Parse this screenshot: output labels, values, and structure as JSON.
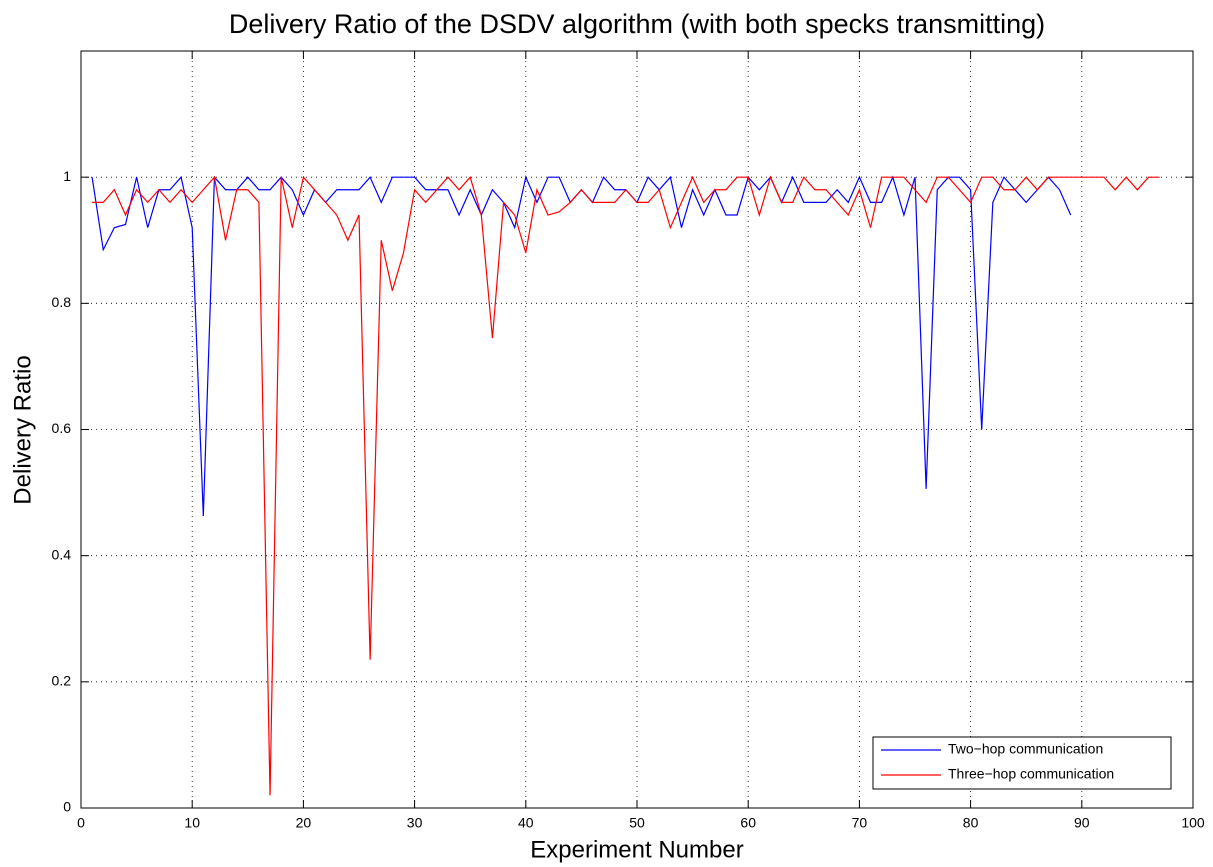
{
  "chart_data": {
    "type": "line",
    "title": "Delivery Ratio of the DSDV algorithm (with both specks transmitting)",
    "xlabel": "Experiment Number",
    "ylabel": "Delivery Ratio",
    "x": [
      1,
      2,
      3,
      4,
      5,
      6,
      7,
      8,
      9,
      10,
      11,
      12,
      13,
      14,
      15,
      16,
      17,
      18,
      19,
      20,
      21,
      22,
      23,
      24,
      25,
      26,
      27,
      28,
      29,
      30,
      31,
      32,
      33,
      34,
      35,
      36,
      37,
      38,
      39,
      40,
      41,
      42,
      43,
      44,
      45,
      46,
      47,
      48,
      49,
      50,
      51,
      52,
      53,
      54,
      55,
      56,
      57,
      58,
      59,
      60,
      61,
      62,
      63,
      64,
      65,
      66,
      67,
      68,
      69,
      70,
      71,
      72,
      73,
      74,
      75,
      76,
      77,
      78,
      79,
      80,
      81,
      82,
      83,
      84,
      85,
      86,
      87,
      88,
      89,
      90,
      91,
      92,
      93,
      94,
      95,
      96,
      97
    ],
    "series": [
      {
        "name": "Two−hop communication",
        "color": "#0000ff",
        "values": [
          1.0,
          0.885,
          0.92,
          0.925,
          1.0,
          0.92,
          0.98,
          0.98,
          1.0,
          0.92,
          0.463,
          1.0,
          0.98,
          0.98,
          1.0,
          0.98,
          0.98,
          1.0,
          0.98,
          0.94,
          0.98,
          0.96,
          0.98,
          0.98,
          0.98,
          1.0,
          0.96,
          1.0,
          1.0,
          1.0,
          0.98,
          0.98,
          0.98,
          0.94,
          0.98,
          0.94,
          0.98,
          0.96,
          0.92,
          1.0,
          0.96,
          1.0,
          1.0,
          0.96,
          0.98,
          0.96,
          1.0,
          0.98,
          0.98,
          0.96,
          1.0,
          0.98,
          1.0,
          0.92,
          0.98,
          0.94,
          0.98,
          0.94,
          0.94,
          1.0,
          0.98,
          1.0,
          0.96,
          1.0,
          0.96,
          0.96,
          0.96,
          0.98,
          0.96,
          1.0,
          0.96,
          0.96,
          1.0,
          0.94,
          1.0,
          0.506,
          0.98,
          1.0,
          1.0,
          0.98,
          0.6,
          0.96,
          1.0,
          0.98,
          0.96,
          0.98,
          1.0,
          0.98,
          0.94,
          null,
          null,
          null,
          null,
          null,
          null,
          null,
          null
        ]
      },
      {
        "name": "Three−hop communication",
        "color": "#ff0000",
        "values": [
          0.96,
          0.96,
          0.98,
          0.94,
          0.98,
          0.96,
          0.98,
          0.96,
          0.98,
          0.96,
          0.98,
          1.0,
          0.9,
          0.98,
          0.98,
          0.96,
          0.02,
          1.0,
          0.92,
          1.0,
          0.98,
          0.96,
          0.94,
          0.9,
          0.94,
          0.235,
          0.9,
          0.82,
          0.88,
          0.98,
          0.96,
          0.98,
          1.0,
          0.98,
          1.0,
          0.94,
          0.745,
          0.96,
          0.94,
          0.88,
          0.98,
          0.94,
          0.945,
          0.96,
          0.98,
          0.96,
          0.96,
          0.96,
          0.98,
          0.96,
          0.96,
          0.98,
          0.92,
          0.96,
          1.0,
          0.96,
          0.98,
          0.98,
          1.0,
          1.0,
          0.94,
          1.0,
          0.96,
          0.96,
          1.0,
          0.98,
          0.98,
          0.96,
          0.94,
          0.98,
          0.92,
          1.0,
          1.0,
          1.0,
          0.98,
          0.96,
          1.0,
          1.0,
          0.98,
          0.96,
          1.0,
          1.0,
          0.98,
          0.98,
          1.0,
          0.98,
          1.0,
          1.0,
          1.0,
          1.0,
          1.0,
          1.0,
          0.98,
          1.0,
          0.98,
          1.0,
          1.0
        ]
      }
    ],
    "xlim": [
      0,
      100
    ],
    "xticks": [
      0,
      10,
      20,
      30,
      40,
      50,
      60,
      70,
      80,
      90,
      100
    ],
    "ylim": [
      0,
      1.2
    ],
    "yticks": [
      0,
      0.2,
      0.4,
      0.6,
      0.8,
      1
    ],
    "grid": true,
    "legend": "lower right"
  }
}
